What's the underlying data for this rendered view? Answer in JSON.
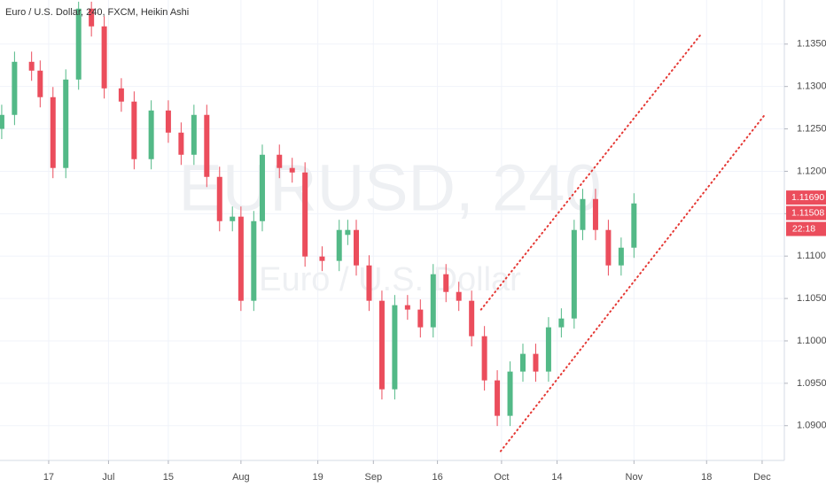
{
  "chart_data": {
    "type": "candlestick",
    "title": "Euro / U.S. Dollar, 240, FXCM, Heikin Ashi",
    "watermark": "EURUSD, 240",
    "watermark_subtitle": "Euro / U.S. Dollar",
    "x": [
      5,
      8,
      12,
      14,
      17,
      20,
      23,
      26,
      29,
      33,
      36,
      40,
      44,
      47,
      50,
      53,
      56,
      59,
      61,
      64,
      66,
      70,
      73,
      76,
      80,
      84,
      86,
      88,
      91,
      94,
      97,
      100,
      103,
      106,
      109,
      112,
      115,
      118,
      121,
      124,
      127,
      130,
      133,
      136,
      139,
      141,
      144,
      147,
      150,
      153
    ],
    "open": [
      1.125,
      1.12665,
      1.13291,
      1.13187,
      1.12874,
      1.12039,
      1.13082,
      1.13918,
      1.13709,
      1.12978,
      1.12822,
      1.12143,
      1.12717,
      1.12456,
      1.12195,
      1.12665,
      1.11934,
      1.11412,
      1.11465,
      1.10473,
      1.11412,
      1.12195,
      1.12039,
      1.11986,
      1.10995,
      1.10943,
      1.1125,
      1.11308,
      1.1089,
      1.10473,
      1.09429,
      1.10421,
      1.10369,
      1.1016,
      1.10786,
      1.10577,
      1.10473,
      1.10055,
      1.09534,
      1.09116,
      1.09638,
      1.09847,
      1.09638,
      1.1016,
      1.10264,
      1.11308,
      1.11673,
      1.11308,
      1.1089,
      1.11099
    ],
    "high": [
      1.12785,
      1.13411,
      1.13411,
      1.13307,
      1.12994,
      1.13202,
      1.14,
      1.14,
      1.13829,
      1.13098,
      1.12942,
      1.12837,
      1.12837,
      1.12576,
      1.12785,
      1.12785,
      1.12054,
      1.11585,
      1.11585,
      1.11532,
      1.12315,
      1.12315,
      1.12159,
      1.12106,
      1.11115,
      1.11428,
      1.11428,
      1.11428,
      1.1101,
      1.10593,
      1.10541,
      1.10541,
      1.10489,
      1.10906,
      1.10906,
      1.10697,
      1.10593,
      1.10175,
      1.09654,
      1.09758,
      1.09967,
      1.09967,
      1.1028,
      1.10384,
      1.11428,
      1.11793,
      1.11793,
      1.11428,
      1.11219,
      1.11741
    ],
    "low": [
      1.1238,
      1.12545,
      1.13067,
      1.12754,
      1.11919,
      1.11919,
      1.12962,
      1.13589,
      1.12858,
      1.12702,
      1.12023,
      1.12023,
      1.12336,
      1.12075,
      1.12075,
      1.11814,
      1.11292,
      1.11292,
      1.10353,
      1.10353,
      1.11292,
      1.11919,
      1.11866,
      1.10875,
      1.10823,
      1.10823,
      1.1113,
      1.1077,
      1.10353,
      1.09309,
      1.09309,
      1.10249,
      1.1004,
      1.1004,
      1.10457,
      1.10353,
      1.09935,
      1.09414,
      1.08996,
      1.08996,
      1.09518,
      1.09518,
      1.09518,
      1.1004,
      1.10144,
      1.11188,
      1.11188,
      1.1077,
      1.1077,
      1.10979
    ],
    "close": [
      1.12665,
      1.13291,
      1.13187,
      1.12874,
      1.12039,
      1.13082,
      1.13918,
      1.13709,
      1.12978,
      1.12822,
      1.12143,
      1.12717,
      1.12456,
      1.12195,
      1.12665,
      1.11934,
      1.11412,
      1.11465,
      1.10473,
      1.11412,
      1.12195,
      1.12039,
      1.11986,
      1.10995,
      1.10943,
      1.11308,
      1.11308,
      1.1089,
      1.10473,
      1.09429,
      1.10421,
      1.10369,
      1.1016,
      1.10786,
      1.10577,
      1.10473,
      1.10055,
      1.09534,
      1.09116,
      1.09638,
      1.09847,
      1.09638,
      1.1016,
      1.10264,
      1.11308,
      1.11673,
      1.11308,
      1.1089,
      1.11099,
      1.11621
    ],
    "up_color": "#53b987",
    "down_color": "#eb4d5c",
    "xlim": [
      4.6,
      188.2
    ],
    "ylim": [
      1.0859,
      1.1402
    ],
    "xticks": [
      {
        "value": 16,
        "label": "17"
      },
      {
        "value": 30,
        "label": "Jul"
      },
      {
        "value": 44,
        "label": "15"
      },
      {
        "value": 61,
        "label": "Aug"
      },
      {
        "value": 79,
        "label": "19"
      },
      {
        "value": 92,
        "label": "Sep"
      },
      {
        "value": 107,
        "label": "16"
      },
      {
        "value": 122,
        "label": "Oct"
      },
      {
        "value": 135,
        "label": "14"
      },
      {
        "value": 153,
        "label": "Nov"
      },
      {
        "value": 170,
        "label": "18"
      },
      {
        "value": 183,
        "label": "Dec"
      }
    ],
    "yticks": [
      {
        "value": 1.09,
        "label": "1.09000"
      },
      {
        "value": 1.095,
        "label": "1.09500"
      },
      {
        "value": 1.1,
        "label": "1.10000"
      },
      {
        "value": 1.105,
        "label": "1.10500"
      },
      {
        "value": 1.11,
        "label": "1.11000"
      },
      {
        "value": 1.115,
        "label": "1.11500"
      },
      {
        "value": 1.12,
        "label": "1.12000"
      },
      {
        "value": 1.125,
        "label": "1.12500"
      },
      {
        "value": 1.13,
        "label": "1.13000"
      },
      {
        "value": 1.135,
        "label": "1.13500"
      }
    ],
    "grid": true,
    "price_labels": [
      {
        "value": 1.1169,
        "label": "1.11690",
        "color": "#eb4d5c"
      },
      {
        "value": 1.11508,
        "label": "1.11508",
        "color": "#eb4d5c"
      }
    ],
    "countdown": "22:18",
    "trend_lines": [
      {
        "x": [
          117.2,
          168.5
        ],
        "y": [
          1.10369,
          1.13604
        ],
        "color": "#e53935"
      },
      {
        "x": [
          121.8,
          183.6
        ],
        "y": [
          1.08699,
          1.12665
        ],
        "color": "#e53935"
      }
    ]
  }
}
